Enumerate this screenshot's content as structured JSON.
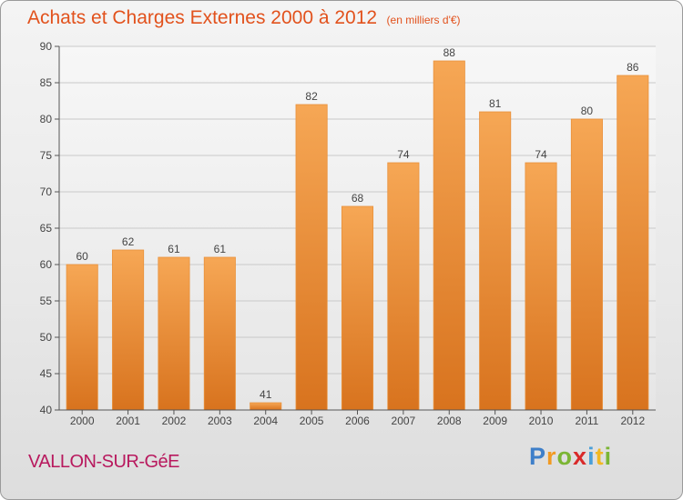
{
  "header": {
    "title": "Achats et Charges Externes 2000 à 2012",
    "subtitle": "(en milliers d'€)"
  },
  "footer": {
    "commune": "VALLON-SUR-GéE",
    "logo": [
      "P",
      "r",
      "o",
      "x",
      "i",
      "t",
      "i"
    ]
  },
  "colors": {
    "title": "#e2521d",
    "commune": "#b8195e",
    "bar_top": "#f6a755",
    "bar_bottom": "#d8731e"
  },
  "chart_data": {
    "type": "bar",
    "title": "Achats et Charges Externes 2000 à 2012",
    "subtitle": "(en milliers d'€)",
    "categories": [
      "2000",
      "2001",
      "2002",
      "2003",
      "2004",
      "2005",
      "2006",
      "2007",
      "2008",
      "2009",
      "2010",
      "2011",
      "2012"
    ],
    "values": [
      60,
      62,
      61,
      61,
      41,
      82,
      68,
      74,
      88,
      81,
      74,
      80,
      86
    ],
    "ylim": [
      40,
      90
    ],
    "yticks": [
      40,
      45,
      50,
      55,
      60,
      65,
      70,
      75,
      80,
      85,
      90
    ],
    "grid": true,
    "xlabel": "",
    "ylabel": ""
  }
}
